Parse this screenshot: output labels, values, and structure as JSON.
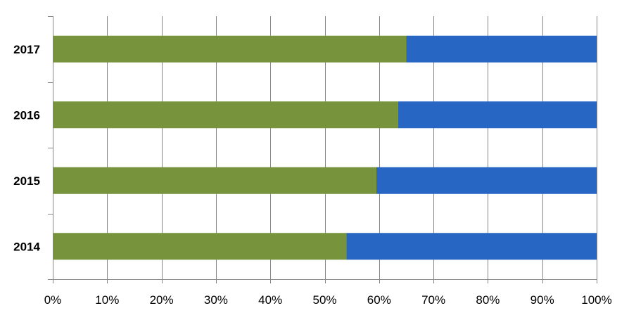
{
  "chart_data": {
    "type": "bar",
    "orientation": "horizontal",
    "stacked": "percent",
    "title": "",
    "xlabel": "",
    "ylabel": "",
    "categories": [
      "2017",
      "2016",
      "2015",
      "2014"
    ],
    "series": [
      {
        "color": "#77933c",
        "values": [
          65,
          63.5,
          59.5,
          54
        ]
      },
      {
        "color": "#2866c4",
        "values": [
          35,
          36.5,
          40.5,
          46
        ]
      }
    ],
    "xlim": [
      0,
      100
    ],
    "x_ticks": [
      "0%",
      "10%",
      "20%",
      "30%",
      "40%",
      "50%",
      "60%",
      "70%",
      "80%",
      "90%",
      "100%"
    ],
    "grid": "vertical",
    "legend": "none",
    "grid_color": "#868686",
    "axis_color": "#868686"
  }
}
